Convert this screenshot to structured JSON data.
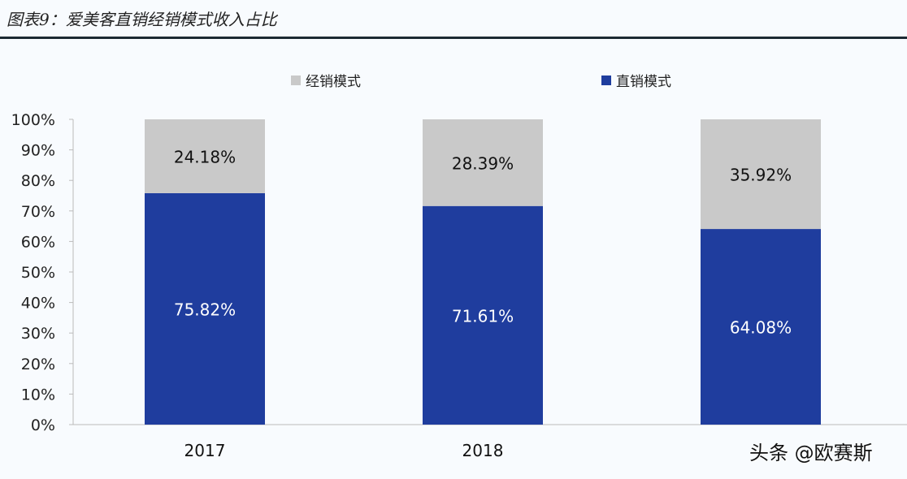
{
  "title": "图表9：爱美客直销经销模式收入占比",
  "watermark": "头条 @欧赛斯",
  "chart_data": {
    "type": "bar",
    "stacked": true,
    "categories": [
      "2017",
      "2018",
      ""
    ],
    "series": [
      {
        "name": "直销模式",
        "color": "#1f3d9e",
        "values": [
          75.82,
          71.61,
          64.08
        ],
        "labels": [
          "75.82%",
          "71.61%",
          "64.08%"
        ]
      },
      {
        "name": "经销模式",
        "color": "#c9c9c9",
        "values": [
          24.18,
          28.39,
          35.92
        ],
        "labels": [
          "24.18%",
          "28.39%",
          "35.92%"
        ]
      }
    ],
    "legend_order": [
      "经销模式",
      "直销模式"
    ],
    "legend_position": "top",
    "ylim": [
      0,
      100
    ],
    "yticks": [
      "0%",
      "10%",
      "20%",
      "30%",
      "40%",
      "50%",
      "60%",
      "70%",
      "80%",
      "90%",
      "100%"
    ],
    "grid": false
  }
}
